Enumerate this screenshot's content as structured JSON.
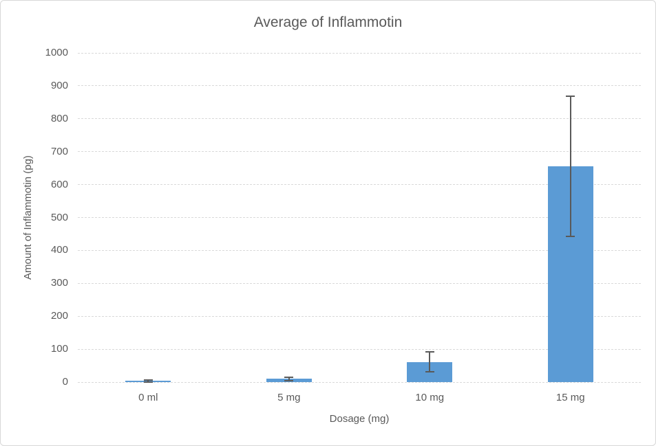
{
  "chart_data": {
    "type": "bar",
    "title": "Average of Inflammotin",
    "xlabel": "Dosage (mg)",
    "ylabel": "Amount of Inflammotin (pg)",
    "categories": [
      "0 ml",
      "5 mg",
      "10 mg",
      "15 mg"
    ],
    "values": [
      4,
      10,
      61,
      655
    ],
    "error_bars": {
      "low": [
        1,
        4,
        31,
        442
      ],
      "high": [
        7,
        15,
        92,
        868
      ]
    },
    "ylim": [
      0,
      1000
    ],
    "ytick_step": 100,
    "yticks": [
      0,
      100,
      200,
      300,
      400,
      500,
      600,
      700,
      800,
      900,
      1000
    ],
    "grid": true,
    "legend": "none",
    "colors": {
      "bar": "#5b9bd5",
      "error_bar": "#595959",
      "text": "#595959",
      "gridline": "#d9d9d9",
      "chart_border": "#d7d7d7",
      "background": "#ffffff"
    }
  }
}
